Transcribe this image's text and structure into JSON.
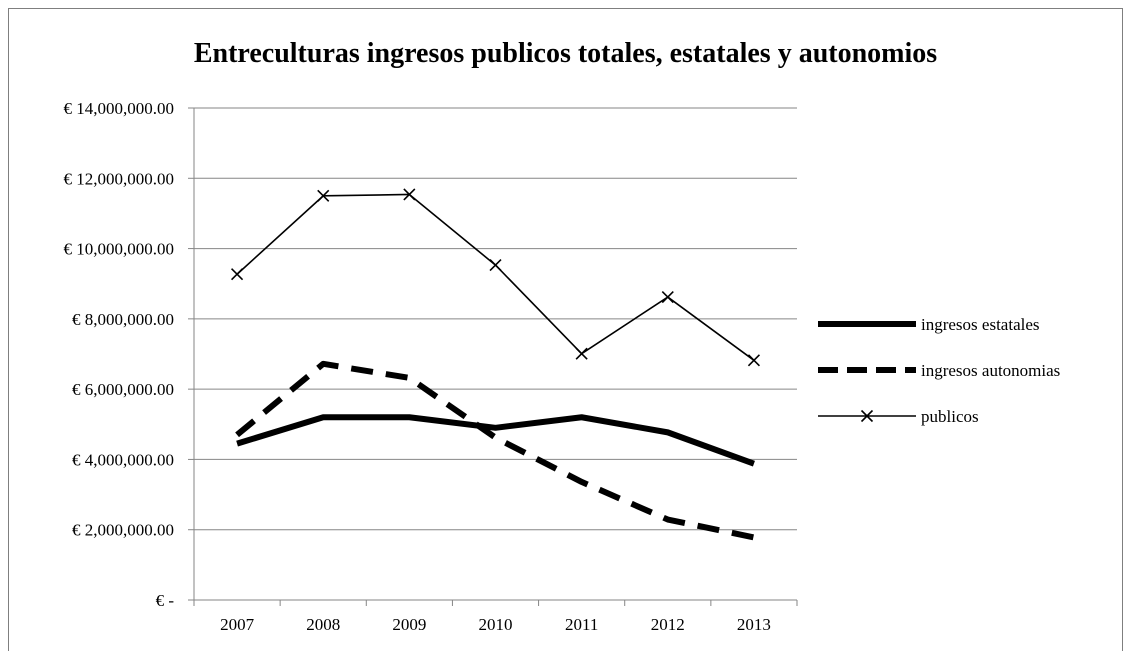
{
  "chart_data": {
    "type": "line",
    "title": "Entreculturas ingresos publicos totales, estatales y autonomios",
    "categories": [
      "2007",
      "2008",
      "2009",
      "2010",
      "2011",
      "2012",
      "2013"
    ],
    "ylim": [
      0,
      14000000
    ],
    "yticks": [
      0,
      2000000,
      4000000,
      6000000,
      8000000,
      10000000,
      12000000,
      14000000
    ],
    "ytick_labels": [
      "€ -",
      "€ 2,000,000.00",
      "€ 4,000,000.00",
      "€ 6,000,000.00",
      "€ 8,000,000.00",
      "€ 10,000,000.00",
      "€ 12,000,000.00",
      "€ 14,000,000.00"
    ],
    "grid": true,
    "legend_position": "right",
    "series": [
      {
        "name": "ingresos estatales",
        "style": "thick-solid",
        "color": "#000000",
        "values": [
          4450000,
          5200000,
          5200000,
          4900000,
          5200000,
          4770000,
          3880000
        ]
      },
      {
        "name": "ingresos autonomias",
        "style": "thick-dashed",
        "color": "#000000",
        "values": [
          4700000,
          6720000,
          6320000,
          4620000,
          3360000,
          2290000,
          1780000
        ]
      },
      {
        "name": "publicos",
        "style": "thin-x-marker",
        "color": "#000000",
        "values": [
          9270000,
          11500000,
          11540000,
          9530000,
          7010000,
          8620000,
          6820000
        ]
      }
    ]
  }
}
